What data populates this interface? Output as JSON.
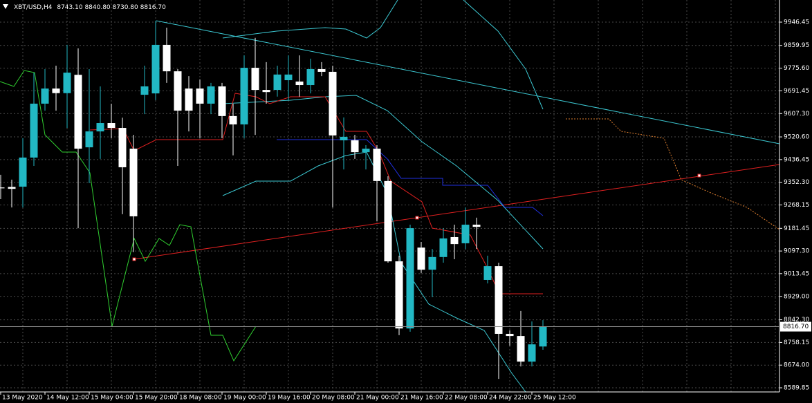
{
  "chart_data": {
    "type": "candlestick",
    "title": "XBT/USD,H4",
    "title_ohlc_labels": [
      "8743.10",
      "8840.80",
      "8730.80",
      "8816.70"
    ],
    "categories": [
      "13 May 2020",
      null,
      null,
      null,
      "14 May 12:00",
      null,
      null,
      null,
      "15 May 04:00",
      null,
      null,
      null,
      "15 May 20:00",
      null,
      null,
      null,
      "18 May 08:00",
      null,
      null,
      null,
      "19 May 00:00",
      null,
      null,
      null,
      "19 May 16:00",
      null,
      null,
      null,
      "20 May 08:00",
      null,
      null,
      null,
      "21 May 00:00",
      null,
      null,
      null,
      "21 May 16:00",
      null,
      null,
      null,
      "22 May 08:00",
      null,
      null,
      null,
      "24 May 22:00",
      null,
      null,
      null,
      "25 May 12:00",
      null
    ],
    "open": [
      9333,
      9335,
      9336,
      9444,
      9644,
      9700,
      9683,
      9751,
      9482,
      9541,
      9572,
      9554,
      9477,
      9677,
      9682,
      9862,
      9764,
      9700,
      9700,
      9644,
      9708,
      9598,
      9567,
      9777,
      9695,
      9695,
      9731,
      9726,
      9713,
      9772,
      9762,
      9508,
      9508,
      9464,
      9477,
      9357,
      9059,
      8810,
      9110,
      9028,
      9075,
      9149,
      9126,
      9195,
      8990,
      9041,
      8790,
      8782,
      8687,
      8743.1
    ],
    "high": [
      9380,
      9362,
      9516,
      9759,
      9772,
      9785,
      9862,
      9849,
      9772,
      9708,
      9644,
      9592,
      9528,
      9785,
      9952,
      9926,
      9772,
      9746,
      9734,
      9721,
      9721,
      9644,
      9823,
      9888,
      9798,
      9785,
      9823,
      9823,
      9811,
      9798,
      9785,
      9593,
      9528,
      9490,
      9490,
      9375,
      9080,
      9195,
      9131,
      9105,
      9182,
      9195,
      9259,
      9221,
      9080,
      9054,
      8803,
      8875,
      8836,
      8840.8
    ],
    "low": [
      9290,
      9259,
      9259,
      9413,
      9618,
      9618,
      9554,
      9182,
      9349,
      9439,
      9516,
      9234,
      9093,
      9605,
      9657,
      9721,
      9413,
      9541,
      9516,
      9605,
      9516,
      9452,
      9516,
      9528,
      9644,
      9670,
      9657,
      9670,
      9682,
      9746,
      9259,
      9400,
      9439,
      9400,
      9208,
      9054,
      8785,
      8798,
      9016,
      8926,
      9054,
      9067,
      9105,
      9105,
      8977,
      8623,
      8746,
      8669,
      8669,
      8730.8
    ],
    "close": [
      9330,
      9328,
      9444,
      9644,
      9700,
      9683,
      9759,
      9477,
      9541,
      9572,
      9554,
      9408,
      9226,
      9708,
      9862,
      9764,
      9618,
      9618,
      9644,
      9708,
      9598,
      9567,
      9777,
      9695,
      9687,
      9752,
      9752,
      9713,
      9772,
      9762,
      9526,
      9521,
      9464,
      9477,
      9357,
      9059,
      8810,
      9182,
      9028,
      9075,
      9144,
      9123,
      9195,
      9187,
      9041,
      8790,
      8782,
      8687,
      8751,
      8816.7
    ],
    "last_price": {
      "value": 8816.7,
      "label": "8816.70"
    },
    "up_color": "#22b8c4",
    "down_color": "#ffffff",
    "ylim": [
      8574.5,
      10028.5
    ],
    "yticks": [
      9946.45,
      9859.95,
      {
        "value": 9775.6,
        "label": "9775.60"
      },
      9691.45,
      {
        "value": 9607.3,
        "label": "9607.30"
      },
      {
        "value": 9520.6,
        "label": "9520.60"
      },
      9436.45,
      {
        "value": 9352.3,
        "label": "9352.30"
      },
      9268.15,
      9181.45,
      {
        "value": 9097.3,
        "label": "9097.30"
      },
      9013.45,
      {
        "value": 8929,
        "label": "8929.00"
      },
      {
        "value": 8842.3,
        "label": "8842.30"
      },
      8758.15,
      {
        "value": 8674,
        "label": "8674.00"
      },
      8589.85
    ],
    "grid": true
  }
}
